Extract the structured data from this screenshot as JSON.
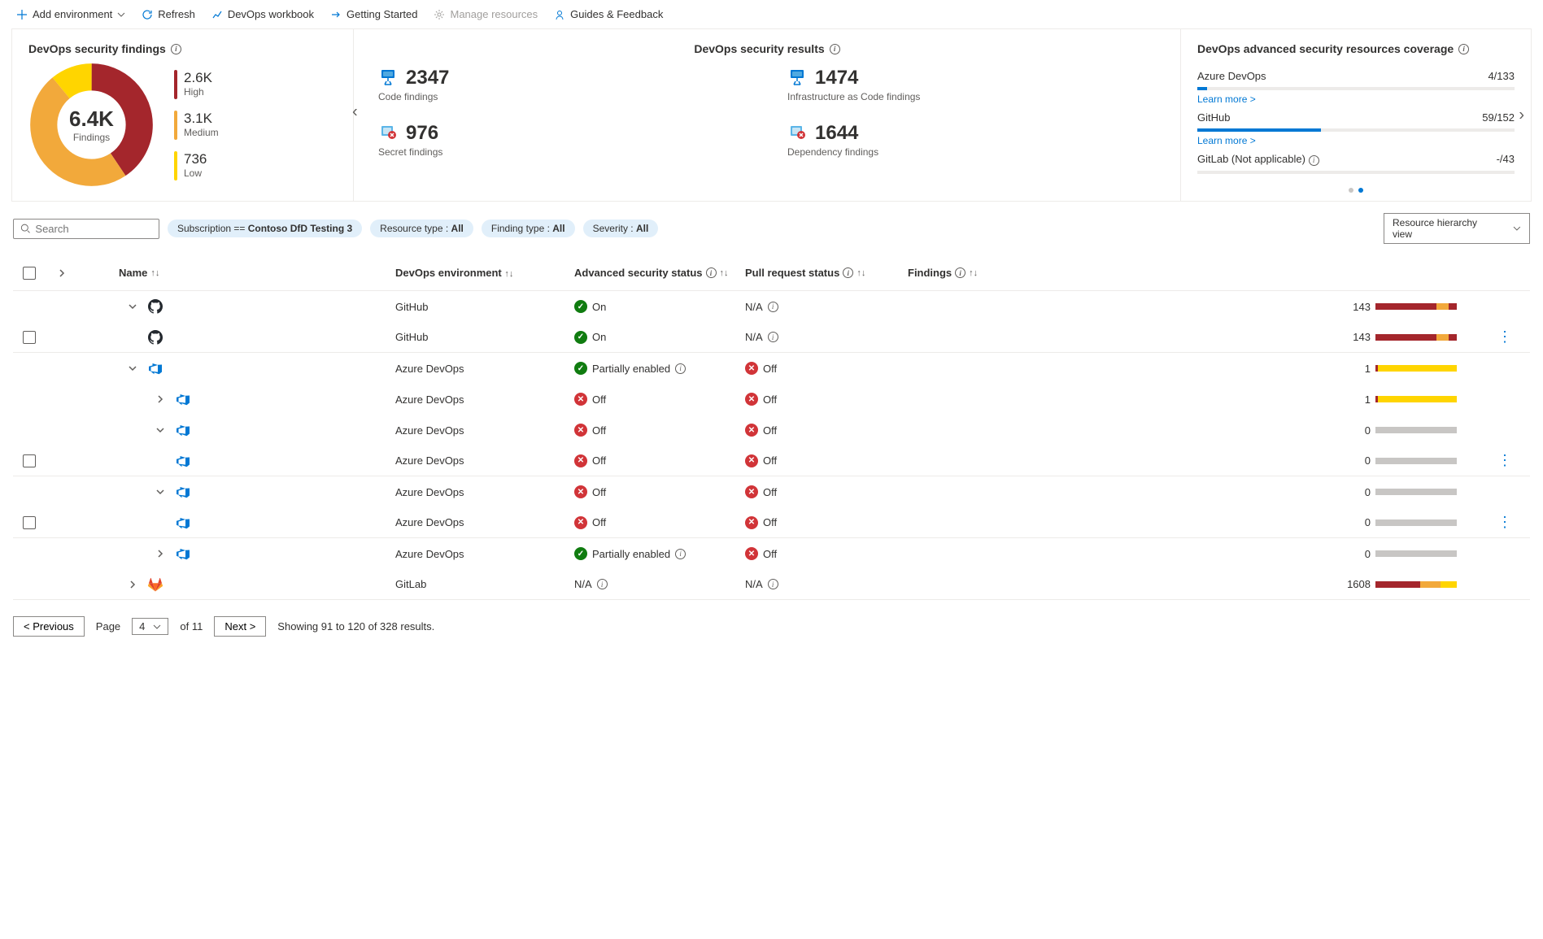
{
  "toolbar": {
    "add_env": "Add environment",
    "refresh": "Refresh",
    "workbook": "DevOps workbook",
    "getting_started": "Getting Started",
    "manage": "Manage resources",
    "guides": "Guides & Feedback"
  },
  "findings_card": {
    "title": "DevOps security findings",
    "total": "6.4K",
    "total_label": "Findings",
    "high": {
      "value": "2.6K",
      "label": "High",
      "color": "#a4262c"
    },
    "medium": {
      "value": "3.1K",
      "label": "Medium",
      "color": "#f2a93b"
    },
    "low": {
      "value": "736",
      "label": "Low",
      "color": "#ffd500"
    },
    "donut_segments": [
      {
        "color": "#a4262c",
        "pct": 40.6
      },
      {
        "color": "#f2a93b",
        "pct": 48.4
      },
      {
        "color": "#ffd500",
        "pct": 11.0
      }
    ]
  },
  "results_card": {
    "title": "DevOps security results",
    "items": [
      {
        "value": "2347",
        "label": "Code findings",
        "icon": "code",
        "color": "#0078d4"
      },
      {
        "value": "1474",
        "label": "Infrastructure as Code findings",
        "icon": "iac",
        "color": "#0078d4"
      },
      {
        "value": "976",
        "label": "Secret findings",
        "icon": "secret",
        "badge": "#d13438"
      },
      {
        "value": "1644",
        "label": "Dependency findings",
        "icon": "dep",
        "badge": "#d13438"
      }
    ]
  },
  "coverage_card": {
    "title": "DevOps advanced security resources coverage",
    "rows": [
      {
        "name": "Azure DevOps",
        "value": "4/133",
        "pct": 3,
        "link": "Learn more >"
      },
      {
        "name": "GitHub",
        "value": "59/152",
        "pct": 39,
        "link": "Learn more >"
      },
      {
        "name": "GitLab (Not applicable)",
        "value": "-/43",
        "pct": 0,
        "link": null,
        "info": true
      }
    ]
  },
  "filters": {
    "search_placeholder": "Search",
    "pills": [
      {
        "key": "Subscription ==",
        "value": "Contoso DfD Testing 3"
      },
      {
        "key": "Resource type :",
        "value": "All"
      },
      {
        "key": "Finding type :",
        "value": "All"
      },
      {
        "key": "Severity :",
        "value": "All"
      }
    ],
    "view_select": "Resource hierarchy view"
  },
  "table": {
    "headers": {
      "name": "Name",
      "env": "DevOps environment",
      "adv": "Advanced security status",
      "pr": "Pull request status",
      "find": "Findings"
    },
    "rows": [
      {
        "indent": 0,
        "chev": "down",
        "cb": false,
        "icon": "github",
        "env": "GitHub",
        "adv": "on",
        "adv_text": "On",
        "pr": "na",
        "pr_text": "N/A",
        "findings": 143,
        "bars": [
          [
            "#a4262c",
            75
          ],
          [
            "#f2a93b",
            15
          ],
          [
            "#a4262c",
            10
          ]
        ],
        "more": false,
        "sep": false
      },
      {
        "indent": 1,
        "chev": null,
        "cb": true,
        "icon": "github",
        "env": "GitHub",
        "adv": "on",
        "adv_text": "On",
        "pr": "na",
        "pr_text": "N/A",
        "findings": 143,
        "bars": [
          [
            "#a4262c",
            75
          ],
          [
            "#f2a93b",
            15
          ],
          [
            "#a4262c",
            10
          ]
        ],
        "more": true,
        "sep": true
      },
      {
        "indent": 0,
        "chev": "down",
        "cb": false,
        "icon": "ado",
        "env": "Azure DevOps",
        "adv": "partial",
        "adv_text": "Partially enabled",
        "pr": "off",
        "pr_text": "Off",
        "findings": 1,
        "bars": [
          [
            "#a4262c",
            3
          ],
          [
            "#ffd500",
            97
          ]
        ],
        "more": false,
        "sep": false
      },
      {
        "indent": 1,
        "chev": "right",
        "cb": false,
        "icon": "ado",
        "env": "Azure DevOps",
        "adv": "off",
        "adv_text": "Off",
        "pr": "off",
        "pr_text": "Off",
        "findings": 1,
        "bars": [
          [
            "#a4262c",
            3
          ],
          [
            "#ffd500",
            97
          ]
        ],
        "more": false,
        "sep": false
      },
      {
        "indent": 1,
        "chev": "down",
        "cb": false,
        "icon": "ado",
        "env": "Azure DevOps",
        "adv": "off",
        "adv_text": "Off",
        "pr": "off",
        "pr_text": "Off",
        "findings": 0,
        "bars": [
          [
            "#c8c6c4",
            100
          ]
        ],
        "more": false,
        "sep": false
      },
      {
        "indent": 2,
        "chev": null,
        "cb": true,
        "icon": "ado",
        "env": "Azure DevOps",
        "adv": "off",
        "adv_text": "Off",
        "pr": "off",
        "pr_text": "Off",
        "findings": 0,
        "bars": [
          [
            "#c8c6c4",
            100
          ]
        ],
        "more": true,
        "sep": true
      },
      {
        "indent": 1,
        "chev": "down",
        "cb": false,
        "icon": "ado",
        "env": "Azure DevOps",
        "adv": "off",
        "adv_text": "Off",
        "pr": "off",
        "pr_text": "Off",
        "findings": 0,
        "bars": [
          [
            "#c8c6c4",
            100
          ]
        ],
        "more": false,
        "sep": false
      },
      {
        "indent": 2,
        "chev": null,
        "cb": true,
        "icon": "ado",
        "env": "Azure DevOps",
        "adv": "off",
        "adv_text": "Off",
        "pr": "off",
        "pr_text": "Off",
        "findings": 0,
        "bars": [
          [
            "#c8c6c4",
            100
          ]
        ],
        "more": true,
        "sep": true
      },
      {
        "indent": 1,
        "chev": "right",
        "cb": false,
        "icon": "ado",
        "env": "Azure DevOps",
        "adv": "partial",
        "adv_text": "Partially enabled",
        "pr": "off",
        "pr_text": "Off",
        "findings": 0,
        "bars": [
          [
            "#c8c6c4",
            100
          ]
        ],
        "more": false,
        "sep": false
      },
      {
        "indent": 0,
        "chev": "right",
        "cb": false,
        "icon": "gitlab",
        "env": "GitLab",
        "adv": "na",
        "adv_text": "N/A",
        "pr": "na",
        "pr_text": "N/A",
        "findings": 1608,
        "bars": [
          [
            "#a4262c",
            55
          ],
          [
            "#f2a93b",
            25
          ],
          [
            "#ffd500",
            20
          ]
        ],
        "more": false,
        "sep": true
      }
    ]
  },
  "pagination": {
    "prev": "< Previous",
    "next": "Next >",
    "page_label": "Page",
    "page": "4",
    "of": "of 11",
    "status": "Showing 91 to 120 of 328 results."
  },
  "colors": {
    "blue": "#0078d4",
    "red": "#d13438",
    "green": "#107c10"
  }
}
